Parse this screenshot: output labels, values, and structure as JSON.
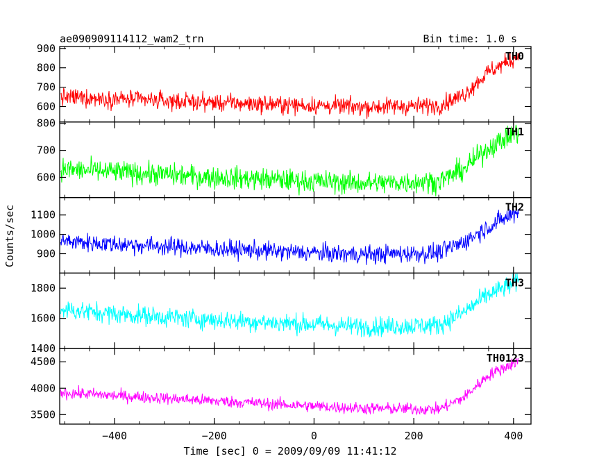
{
  "header": {
    "title": "ae090909114112_wam2_trn",
    "bin_time": "Bin time: 1.0 s"
  },
  "axes": {
    "xlabel": "Time [sec] 0 = 2009/09/09 11:41:12",
    "ylabel": "Counts/sec"
  },
  "chart_data": {
    "type": "line",
    "x_range": [
      -510,
      435
    ],
    "x_ticks": [
      -400,
      -200,
      0,
      200,
      400
    ],
    "x_tick_labels": [
      "−400",
      "−200",
      "0",
      "200",
      "400"
    ],
    "shape": {
      "description_points_t": [
        -510,
        -400,
        -200,
        0,
        100,
        250,
        300,
        350,
        410
      ],
      "level_factors": [
        1.0,
        0.98,
        0.95,
        0.93,
        0.92,
        0.93,
        1.0,
        1.18,
        1.38
      ]
    },
    "panels": [
      {
        "name": "TH0",
        "color": "#ff0000",
        "ylim": [
          520,
          910
        ],
        "yticks": [
          600,
          700,
          800,
          900
        ],
        "base": 650,
        "levels": [
          650,
          640,
          620,
          605,
          598,
          605,
          660,
          780,
          860
        ],
        "noise": 38
      },
      {
        "name": "TH1",
        "color": "#00ff00",
        "ylim": [
          525,
          805
        ],
        "yticks": [
          600,
          700,
          800
        ],
        "base": 630,
        "levels": [
          630,
          620,
          600,
          585,
          578,
          585,
          630,
          710,
          770
        ],
        "noise": 35
      },
      {
        "name": "TH2",
        "color": "#0000ff",
        "ylim": [
          800,
          1190
        ],
        "yticks": [
          900,
          1000,
          1100
        ],
        "base": 965,
        "levels": [
          965,
          950,
          925,
          905,
          895,
          905,
          960,
          1040,
          1120
        ],
        "noise": 40
      },
      {
        "name": "TH3",
        "color": "#00ffff",
        "ylim": [
          1400,
          1900
        ],
        "yticks": [
          1400,
          1600,
          1800
        ],
        "base": 1660,
        "levels": [
          1660,
          1630,
          1590,
          1560,
          1545,
          1555,
          1640,
          1760,
          1840
        ],
        "noise": 55
      },
      {
        "name": "TH0123",
        "color": "#ff00ff",
        "ylim": [
          3320,
          4750
        ],
        "yticks": [
          3500,
          4000,
          4500
        ],
        "base": 3920,
        "levels": [
          3920,
          3860,
          3760,
          3660,
          3620,
          3600,
          3820,
          4250,
          4520
        ],
        "noise": 95
      }
    ]
  }
}
